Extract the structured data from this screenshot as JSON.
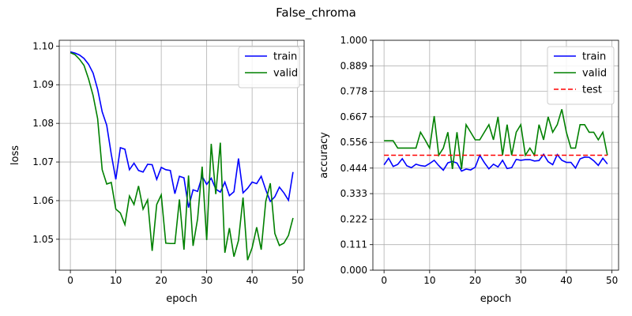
{
  "suptitle": "False_chroma",
  "chart_data": [
    {
      "type": "line",
      "xlabel": "epoch",
      "ylabel": "loss",
      "xlim": [
        -2.45,
        51.45
      ],
      "ylim": [
        1.042,
        1.1015
      ],
      "xticks": [
        0,
        10,
        20,
        30,
        40,
        50
      ],
      "yticks": [
        1.05,
        1.06,
        1.07,
        1.08,
        1.09,
        1.1
      ],
      "ytick_labels": [
        "1.05",
        "1.06",
        "1.07",
        "1.08",
        "1.09",
        "1.10"
      ],
      "grid": true,
      "legend_position": "top-right",
      "x": [
        0,
        1,
        2,
        3,
        4,
        5,
        6,
        7,
        8,
        9,
        10,
        11,
        12,
        13,
        14,
        15,
        16,
        17,
        18,
        19,
        20,
        21,
        22,
        23,
        24,
        25,
        26,
        27,
        28,
        29,
        30,
        31,
        32,
        33,
        34,
        35,
        36,
        37,
        38,
        39,
        40,
        41,
        42,
        43,
        44,
        45,
        46,
        47,
        48,
        49
      ],
      "series": [
        {
          "name": "train",
          "color": "#0000ff",
          "dash": "",
          "values": [
            1.0985,
            1.0982,
            1.0977,
            1.0968,
            1.0953,
            1.093,
            1.0888,
            1.083,
            1.0795,
            1.072,
            1.0655,
            1.0737,
            1.0733,
            1.068,
            1.0697,
            1.0678,
            1.0674,
            1.0694,
            1.0693,
            1.0655,
            1.0686,
            1.068,
            1.0678,
            1.0618,
            1.0663,
            1.0659,
            1.0582,
            1.0628,
            1.0624,
            1.0663,
            1.0642,
            1.0658,
            1.063,
            1.0622,
            1.0648,
            1.0613,
            1.0623,
            1.0709,
            1.062,
            1.0632,
            1.0648,
            1.0644,
            1.0663,
            1.0628,
            1.0598,
            1.061,
            1.0635,
            1.062,
            1.0601,
            1.0674
          ]
        },
        {
          "name": "valid",
          "color": "#008000",
          "dash": "",
          "values": [
            1.0983,
            1.0978,
            1.0966,
            1.095,
            1.0915,
            1.0872,
            1.0812,
            1.068,
            1.0643,
            1.0647,
            1.0578,
            1.0568,
            1.0538,
            1.0612,
            1.059,
            1.0638,
            1.0578,
            1.0602,
            1.047,
            1.059,
            1.0615,
            1.049,
            1.0489,
            1.0489,
            1.0603,
            1.0473,
            1.0665,
            1.0483,
            1.0553,
            1.0688,
            1.0498,
            1.0747,
            1.0617,
            1.075,
            1.0465,
            1.0529,
            1.0455,
            1.0497,
            1.0608,
            1.0446,
            1.0478,
            1.0531,
            1.0473,
            1.0598,
            1.0645,
            1.0515,
            1.0484,
            1.049,
            1.051,
            1.0555
          ]
        }
      ]
    },
    {
      "type": "line",
      "xlabel": "epoch",
      "ylabel": "accuracy",
      "xlim": [
        -2.45,
        51.45
      ],
      "ylim": [
        0.0,
        1.0
      ],
      "xticks": [
        0,
        10,
        20,
        30,
        40,
        50
      ],
      "yticks": [
        0.0,
        0.111,
        0.222,
        0.333,
        0.444,
        0.556,
        0.667,
        0.778,
        0.889,
        1.0
      ],
      "ytick_labels": [
        "0.000",
        "0.111",
        "0.222",
        "0.333",
        "0.444",
        "0.556",
        "0.667",
        "0.778",
        "0.889",
        "1.000"
      ],
      "grid": true,
      "legend_position": "top-right",
      "x": [
        0,
        1,
        2,
        3,
        4,
        5,
        6,
        7,
        8,
        9,
        10,
        11,
        12,
        13,
        14,
        15,
        16,
        17,
        18,
        19,
        20,
        21,
        22,
        23,
        24,
        25,
        26,
        27,
        28,
        29,
        30,
        31,
        32,
        33,
        34,
        35,
        36,
        37,
        38,
        39,
        40,
        41,
        42,
        43,
        44,
        45,
        46,
        47,
        48,
        49
      ],
      "series": [
        {
          "name": "train",
          "color": "#0000ff",
          "dash": "",
          "values": [
            0.458,
            0.487,
            0.451,
            0.46,
            0.485,
            0.454,
            0.446,
            0.461,
            0.455,
            0.452,
            0.464,
            0.478,
            0.455,
            0.435,
            0.467,
            0.473,
            0.466,
            0.431,
            0.44,
            0.436,
            0.448,
            0.5,
            0.468,
            0.441,
            0.461,
            0.449,
            0.478,
            0.442,
            0.446,
            0.482,
            0.478,
            0.481,
            0.481,
            0.475,
            0.477,
            0.504,
            0.472,
            0.459,
            0.503,
            0.478,
            0.469,
            0.469,
            0.444,
            0.484,
            0.492,
            0.491,
            0.476,
            0.456,
            0.487,
            0.462
          ]
        },
        {
          "name": "valid",
          "color": "#008000",
          "dash": "",
          "values": [
            0.563,
            0.563,
            0.563,
            0.531,
            0.531,
            0.531,
            0.531,
            0.531,
            0.6,
            0.567,
            0.531,
            0.67,
            0.5,
            0.531,
            0.6,
            0.44,
            0.6,
            0.44,
            0.633,
            0.6,
            0.567,
            0.567,
            0.6,
            0.633,
            0.567,
            0.667,
            0.5,
            0.633,
            0.5,
            0.6,
            0.633,
            0.5,
            0.531,
            0.5,
            0.633,
            0.567,
            0.667,
            0.6,
            0.633,
            0.7,
            0.6,
            0.531,
            0.531,
            0.633,
            0.633,
            0.6,
            0.6,
            0.567,
            0.6,
            0.5
          ]
        },
        {
          "name": "test",
          "color": "#ff0000",
          "dash": "6,3",
          "values": [
            0.5,
            0.5,
            0.5,
            0.5,
            0.5,
            0.5,
            0.5,
            0.5,
            0.5,
            0.5,
            0.5,
            0.5,
            0.5,
            0.5,
            0.5,
            0.5,
            0.5,
            0.5,
            0.5,
            0.5,
            0.5,
            0.5,
            0.5,
            0.5,
            0.5,
            0.5,
            0.5,
            0.5,
            0.5,
            0.5,
            0.5,
            0.5,
            0.5,
            0.5,
            0.5,
            0.5,
            0.5,
            0.5,
            0.5,
            0.5,
            0.5,
            0.5,
            0.5,
            0.5,
            0.5,
            0.5,
            0.5,
            0.5,
            0.5,
            0.5
          ]
        }
      ]
    }
  ]
}
